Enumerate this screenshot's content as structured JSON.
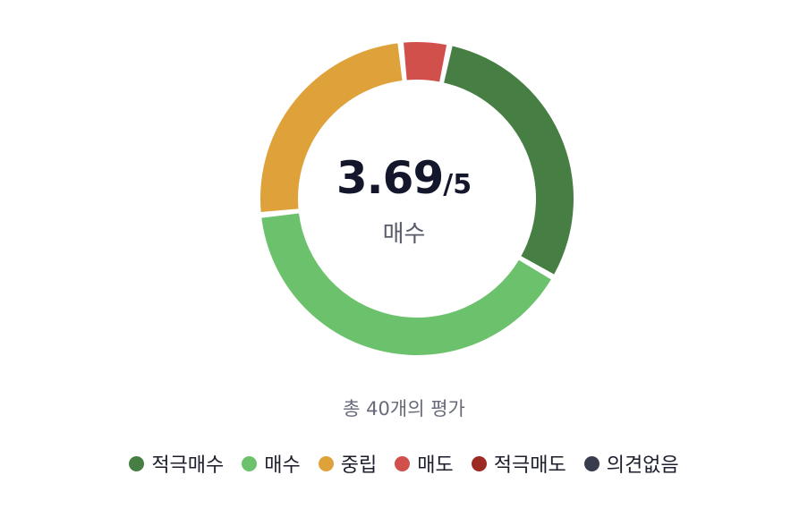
{
  "chart_data": {
    "type": "donut",
    "score": "3.69",
    "score_max": "/5",
    "rating_label": "매수",
    "total_text": "총 40개의 평가",
    "series": [
      {
        "name": "적극매수",
        "value": 12,
        "color": "#467e43"
      },
      {
        "name": "매수",
        "value": 16,
        "color": "#6cc26c"
      },
      {
        "name": "중립",
        "value": 10,
        "color": "#dfa23a"
      },
      {
        "name": "매도",
        "value": 2,
        "color": "#d2504b"
      },
      {
        "name": "적극매도",
        "value": 0,
        "color": "#9e2a24"
      },
      {
        "name": "의견없음",
        "value": 0,
        "color": "#383c4c"
      }
    ]
  }
}
